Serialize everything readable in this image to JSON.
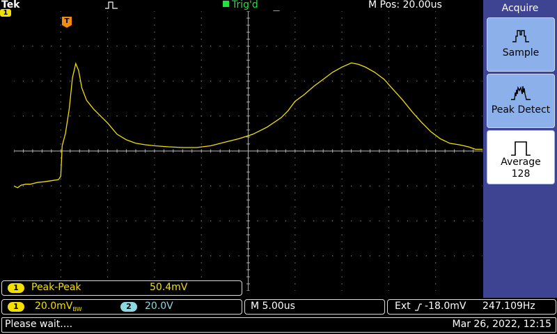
{
  "header": {
    "brand": "Tek",
    "ch1_marker": "1",
    "trigger_status": "Trig'd",
    "trigger_position_label": "M Pos: 20.00us",
    "trigger_marker": "T"
  },
  "waveform": {
    "channel": "1",
    "color": "#f2e000",
    "grid_color": "#8a8a8a",
    "divisions": {
      "x": 10,
      "y": 8
    },
    "points": [
      [
        0.0,
        -1.0
      ],
      [
        0.08,
        -1.05
      ],
      [
        0.15,
        -0.98
      ],
      [
        0.25,
        -0.95
      ],
      [
        0.35,
        -0.95
      ],
      [
        0.5,
        -0.9
      ],
      [
        0.65,
        -0.88
      ],
      [
        0.8,
        -0.85
      ],
      [
        0.95,
        -0.82
      ],
      [
        1.0,
        -0.72
      ],
      [
        1.03,
        0.15
      ],
      [
        1.1,
        0.5
      ],
      [
        1.18,
        1.2
      ],
      [
        1.25,
        2.1
      ],
      [
        1.32,
        2.5
      ],
      [
        1.38,
        2.3
      ],
      [
        1.45,
        1.8
      ],
      [
        1.55,
        1.45
      ],
      [
        1.7,
        1.2
      ],
      [
        1.85,
        1.0
      ],
      [
        2.0,
        0.8
      ],
      [
        2.2,
        0.48
      ],
      [
        2.4,
        0.32
      ],
      [
        2.6,
        0.22
      ],
      [
        2.8,
        0.18
      ],
      [
        3.0,
        0.15
      ],
      [
        3.3,
        0.12
      ],
      [
        3.6,
        0.1
      ],
      [
        3.9,
        0.1
      ],
      [
        4.2,
        0.15
      ],
      [
        4.5,
        0.25
      ],
      [
        4.8,
        0.35
      ],
      [
        5.1,
        0.48
      ],
      [
        5.4,
        0.68
      ],
      [
        5.7,
        0.95
      ],
      [
        5.85,
        1.15
      ],
      [
        6.0,
        1.42
      ],
      [
        6.2,
        1.62
      ],
      [
        6.4,
        1.85
      ],
      [
        6.6,
        2.05
      ],
      [
        6.8,
        2.25
      ],
      [
        7.0,
        2.4
      ],
      [
        7.2,
        2.52
      ],
      [
        7.35,
        2.48
      ],
      [
        7.5,
        2.4
      ],
      [
        7.7,
        2.25
      ],
      [
        7.9,
        2.05
      ],
      [
        8.1,
        1.75
      ],
      [
        8.3,
        1.45
      ],
      [
        8.5,
        1.12
      ],
      [
        8.7,
        0.82
      ],
      [
        8.9,
        0.55
      ],
      [
        9.1,
        0.35
      ],
      [
        9.3,
        0.22
      ],
      [
        9.5,
        0.18
      ],
      [
        9.7,
        0.12
      ],
      [
        9.85,
        0.05
      ],
      [
        10.0,
        0.05
      ]
    ]
  },
  "side_menu": {
    "title": "Acquire",
    "buttons": [
      {
        "label": "Sample",
        "icon": "sample-mode-icon",
        "selected": false
      },
      {
        "label": "Peak Detect",
        "icon": "peak-detect-mode-icon",
        "selected": false
      },
      {
        "label": "Average",
        "sublabel": "128",
        "icon": "average-mode-icon",
        "selected": true
      }
    ]
  },
  "measurement": {
    "channel": "1",
    "name": "Peak-Peak",
    "value": "50.4mV"
  },
  "channels": {
    "ch1": {
      "badge": "1",
      "scale": "20.0mV",
      "bw_suffix": "BW"
    },
    "ch2": {
      "badge": "2",
      "scale": "20.0V"
    }
  },
  "timebase": {
    "label": "M 5.00us"
  },
  "trigger": {
    "source": "Ext",
    "level": "-18.0mV",
    "frequency": "247.109Hz"
  },
  "status": {
    "message": "Please wait....",
    "datetime": "Mar 26, 2022, 12:15"
  }
}
